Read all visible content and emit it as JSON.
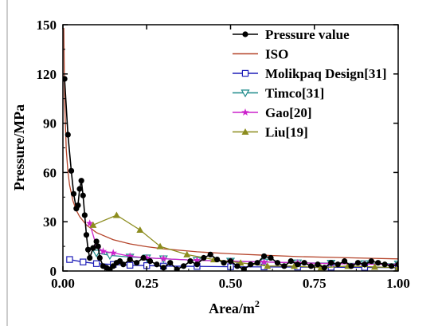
{
  "chart_data": {
    "type": "line",
    "xlabel": "Area/m",
    "xlabel_sup": "2",
    "ylabel": "Pressure/MPa",
    "xlim": [
      0,
      1.0
    ],
    "ylim": [
      0,
      150
    ],
    "xticks": [
      "0.00",
      "0.25",
      "0.50",
      "0.75",
      "1.00"
    ],
    "yticks": [
      "0",
      "30",
      "60",
      "90",
      "120",
      "150"
    ],
    "xtick_values": [
      0,
      0.25,
      0.5,
      0.75,
      1.0
    ],
    "ytick_values": [
      0,
      30,
      60,
      90,
      120,
      150
    ],
    "grid": false,
    "legend_position": "top-right",
    "series": [
      {
        "name": "Pressure value",
        "color": "#000000",
        "marker": "filled-circle",
        "x": [
          0.005,
          0.015,
          0.025,
          0.032,
          0.04,
          0.045,
          0.05,
          0.055,
          0.06,
          0.065,
          0.07,
          0.075,
          0.08,
          0.09,
          0.1,
          0.105,
          0.11,
          0.12,
          0.13,
          0.14,
          0.15,
          0.16,
          0.17,
          0.18,
          0.2,
          0.22,
          0.24,
          0.26,
          0.28,
          0.3,
          0.32,
          0.34,
          0.36,
          0.38,
          0.4,
          0.42,
          0.44,
          0.46,
          0.48,
          0.5,
          0.52,
          0.54,
          0.56,
          0.58,
          0.6,
          0.62,
          0.64,
          0.66,
          0.68,
          0.7,
          0.72,
          0.74,
          0.76,
          0.78,
          0.8,
          0.82,
          0.84,
          0.86,
          0.88,
          0.9,
          0.92,
          0.94,
          0.96,
          0.98,
          1.0
        ],
        "y": [
          117,
          83,
          61,
          47,
          38,
          40,
          50,
          55,
          46,
          34,
          22,
          13,
          8,
          14,
          18,
          15,
          8,
          3,
          2,
          1,
          3,
          5,
          6,
          4,
          7,
          5,
          8,
          6,
          4,
          2,
          5,
          1,
          3,
          6,
          4,
          8,
          10,
          7,
          5,
          6,
          3,
          1,
          4,
          5,
          9,
          8,
          5,
          3,
          6,
          4,
          5,
          3,
          4,
          2,
          5,
          4,
          6,
          3,
          5,
          4,
          6,
          5,
          4,
          3,
          4
        ]
      },
      {
        "name": "ISO",
        "color": "#b5452b",
        "marker": "none",
        "formula": "7.4/sqrt(area)",
        "x": [
          0.0025,
          0.005,
          0.01,
          0.015,
          0.02,
          0.03,
          0.04,
          0.05,
          0.07,
          0.1,
          0.15,
          0.2,
          0.25,
          0.3,
          0.4,
          0.5,
          0.6,
          0.7,
          0.8,
          0.9,
          1.0
        ],
        "y": [
          148,
          104.7,
          74,
          60.4,
          52.3,
          42.7,
          37,
          33.1,
          28,
          23.4,
          19.1,
          16.5,
          14.8,
          13.5,
          11.7,
          10.5,
          9.6,
          8.8,
          8.3,
          7.8,
          7.4
        ]
      },
      {
        "name": "Molikpaq Design[31]",
        "color": "#1f1fb8",
        "marker": "open-square",
        "x": [
          0.02,
          0.06,
          0.1,
          0.15,
          0.2,
          0.25,
          0.3,
          0.4,
          0.5,
          0.6,
          0.7,
          0.8,
          0.9,
          1.0
        ],
        "y": [
          7,
          5.5,
          4.5,
          4,
          3.5,
          3.3,
          3,
          2.8,
          2.6,
          2.5,
          2.4,
          2.3,
          2.2,
          2.1
        ]
      },
      {
        "name": "Timco[31]",
        "color": "#1f8a8a",
        "marker": "open-triangle-down",
        "x": [
          0.1,
          0.14,
          0.2,
          0.25,
          0.3,
          0.4,
          0.5,
          0.6,
          0.7,
          0.8,
          0.9,
          1.0
        ],
        "y": [
          11,
          9.5,
          8.5,
          8,
          7.5,
          6.5,
          6,
          5.5,
          5,
          4.8,
          4.5,
          4.3
        ]
      },
      {
        "name": "Gao[20]",
        "color": "#cc22cc",
        "marker": "star",
        "x": [
          0.08,
          0.1,
          0.12,
          0.15,
          0.2,
          0.25,
          0.3,
          0.4,
          0.5,
          0.6,
          0.7,
          0.8,
          0.9,
          1.0
        ],
        "y": [
          29,
          15,
          12,
          11,
          9,
          8,
          7.5,
          6.5,
          6,
          5.5,
          5,
          4.5,
          4.2,
          4
        ]
      },
      {
        "name": "Liu[19]",
        "color": "#8c8c1e",
        "marker": "filled-triangle-up",
        "x": [
          0.09,
          0.16,
          0.23,
          0.29,
          0.37,
          0.45,
          0.53,
          0.61,
          0.69,
          0.77,
          0.85,
          0.93,
          1.0
        ],
        "y": [
          28,
          34,
          25,
          15,
          10,
          7,
          5,
          3,
          3,
          2,
          3,
          2.5,
          2
        ]
      }
    ]
  }
}
